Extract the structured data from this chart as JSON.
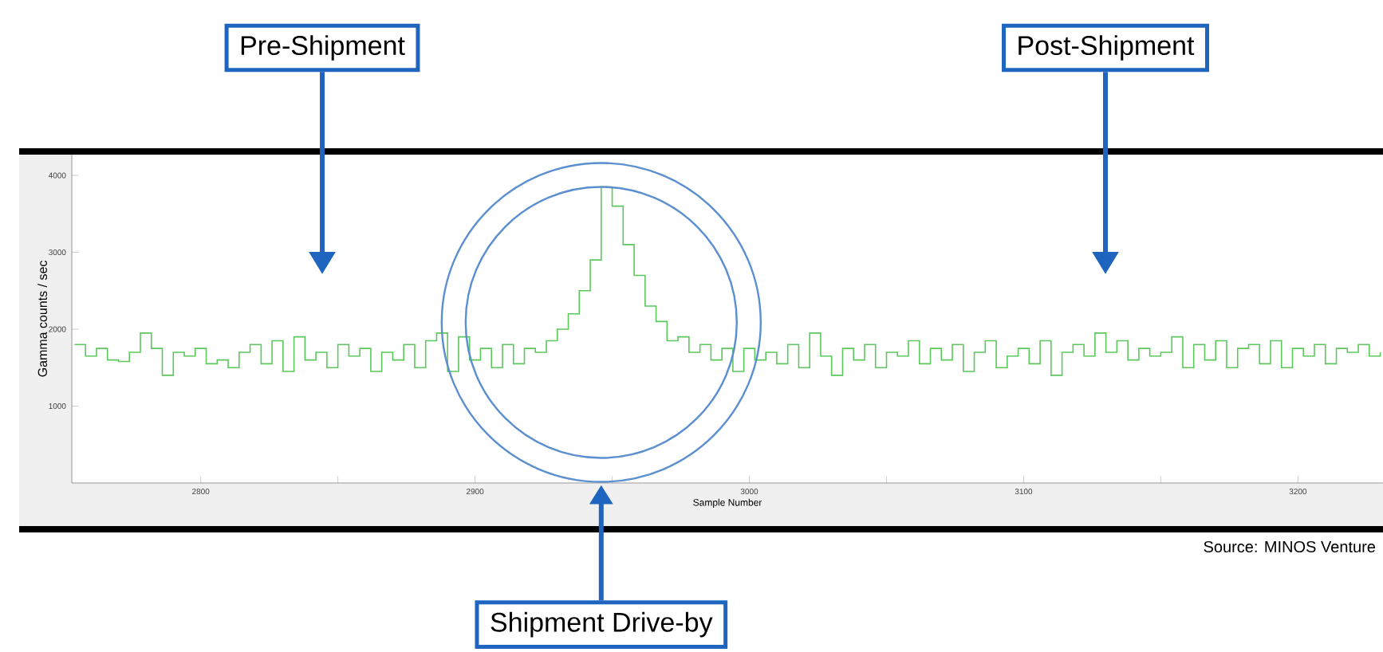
{
  "chart_data": {
    "type": "step",
    "xlabel": "Sample Number",
    "ylabel": "Gamma counts / sec",
    "x": [
      2754,
      2758,
      2762,
      2766,
      2770,
      2774,
      2778,
      2782,
      2786,
      2790,
      2794,
      2798,
      2802,
      2806,
      2810,
      2814,
      2818,
      2822,
      2826,
      2830,
      2834,
      2838,
      2842,
      2846,
      2850,
      2854,
      2858,
      2862,
      2866,
      2870,
      2874,
      2878,
      2882,
      2886,
      2890,
      2894,
      2898,
      2902,
      2906,
      2910,
      2914,
      2918,
      2922,
      2926,
      2930,
      2934,
      2938,
      2942,
      2946,
      2950,
      2954,
      2958,
      2962,
      2966,
      2970,
      2974,
      2978,
      2982,
      2986,
      2990,
      2994,
      2998,
      3002,
      3006,
      3010,
      3014,
      3018,
      3022,
      3026,
      3030,
      3034,
      3038,
      3042,
      3046,
      3050,
      3054,
      3058,
      3062,
      3066,
      3070,
      3074,
      3078,
      3082,
      3086,
      3090,
      3094,
      3098,
      3102,
      3106,
      3110,
      3114,
      3118,
      3122,
      3126,
      3130,
      3134,
      3138,
      3142,
      3146,
      3150,
      3154,
      3158,
      3162,
      3166,
      3170,
      3174,
      3178,
      3182,
      3186,
      3190,
      3194,
      3198,
      3202,
      3206,
      3210,
      3214,
      3218,
      3222,
      3226,
      3230
    ],
    "values": [
      1800,
      1650,
      1750,
      1600,
      1580,
      1700,
      1950,
      1750,
      1400,
      1700,
      1650,
      1750,
      1550,
      1600,
      1500,
      1700,
      1800,
      1550,
      1850,
      1450,
      1900,
      1600,
      1700,
      1500,
      1800,
      1650,
      1750,
      1450,
      1700,
      1600,
      1800,
      1500,
      1850,
      1950,
      1450,
      1900,
      1600,
      1750,
      1500,
      1800,
      1550,
      1750,
      1700,
      1850,
      2000,
      2200,
      2500,
      2900,
      3850,
      3600,
      3100,
      2700,
      2300,
      2100,
      1850,
      1900,
      1700,
      1800,
      1600,
      1750,
      1450,
      1750,
      1600,
      1700,
      1550,
      1800,
      1500,
      1950,
      1650,
      1400,
      1750,
      1600,
      1800,
      1500,
      1700,
      1650,
      1850,
      1550,
      1750,
      1600,
      1800,
      1450,
      1700,
      1850,
      1500,
      1650,
      1750,
      1550,
      1850,
      1400,
      1700,
      1800,
      1650,
      1950,
      1700,
      1850,
      1600,
      1750,
      1650,
      1700,
      1900,
      1500,
      1800,
      1600,
      1850,
      1500,
      1750,
      1800,
      1550,
      1850,
      1500,
      1750,
      1650,
      1800,
      1550,
      1750,
      1700,
      1800,
      1650,
      1700
    ],
    "color": "#5cc85c",
    "xlim": [
      2753,
      3231
    ],
    "xticks": [
      2800,
      {
        "value": 2850,
        "label": null
      },
      2900,
      {
        "value": 2950,
        "label": null
      },
      3000,
      {
        "value": 3050,
        "label": null
      },
      3100,
      {
        "value": 3150,
        "label": null
      },
      3200
    ],
    "ylim": [
      0,
      4270
    ],
    "yticks": [
      1000,
      2000,
      3000,
      4000
    ],
    "annotations": [
      "Pre-Shipment",
      "Post-Shipment",
      "Shipment Drive-by",
      "Source: MINOS Venture"
    ]
  }
}
